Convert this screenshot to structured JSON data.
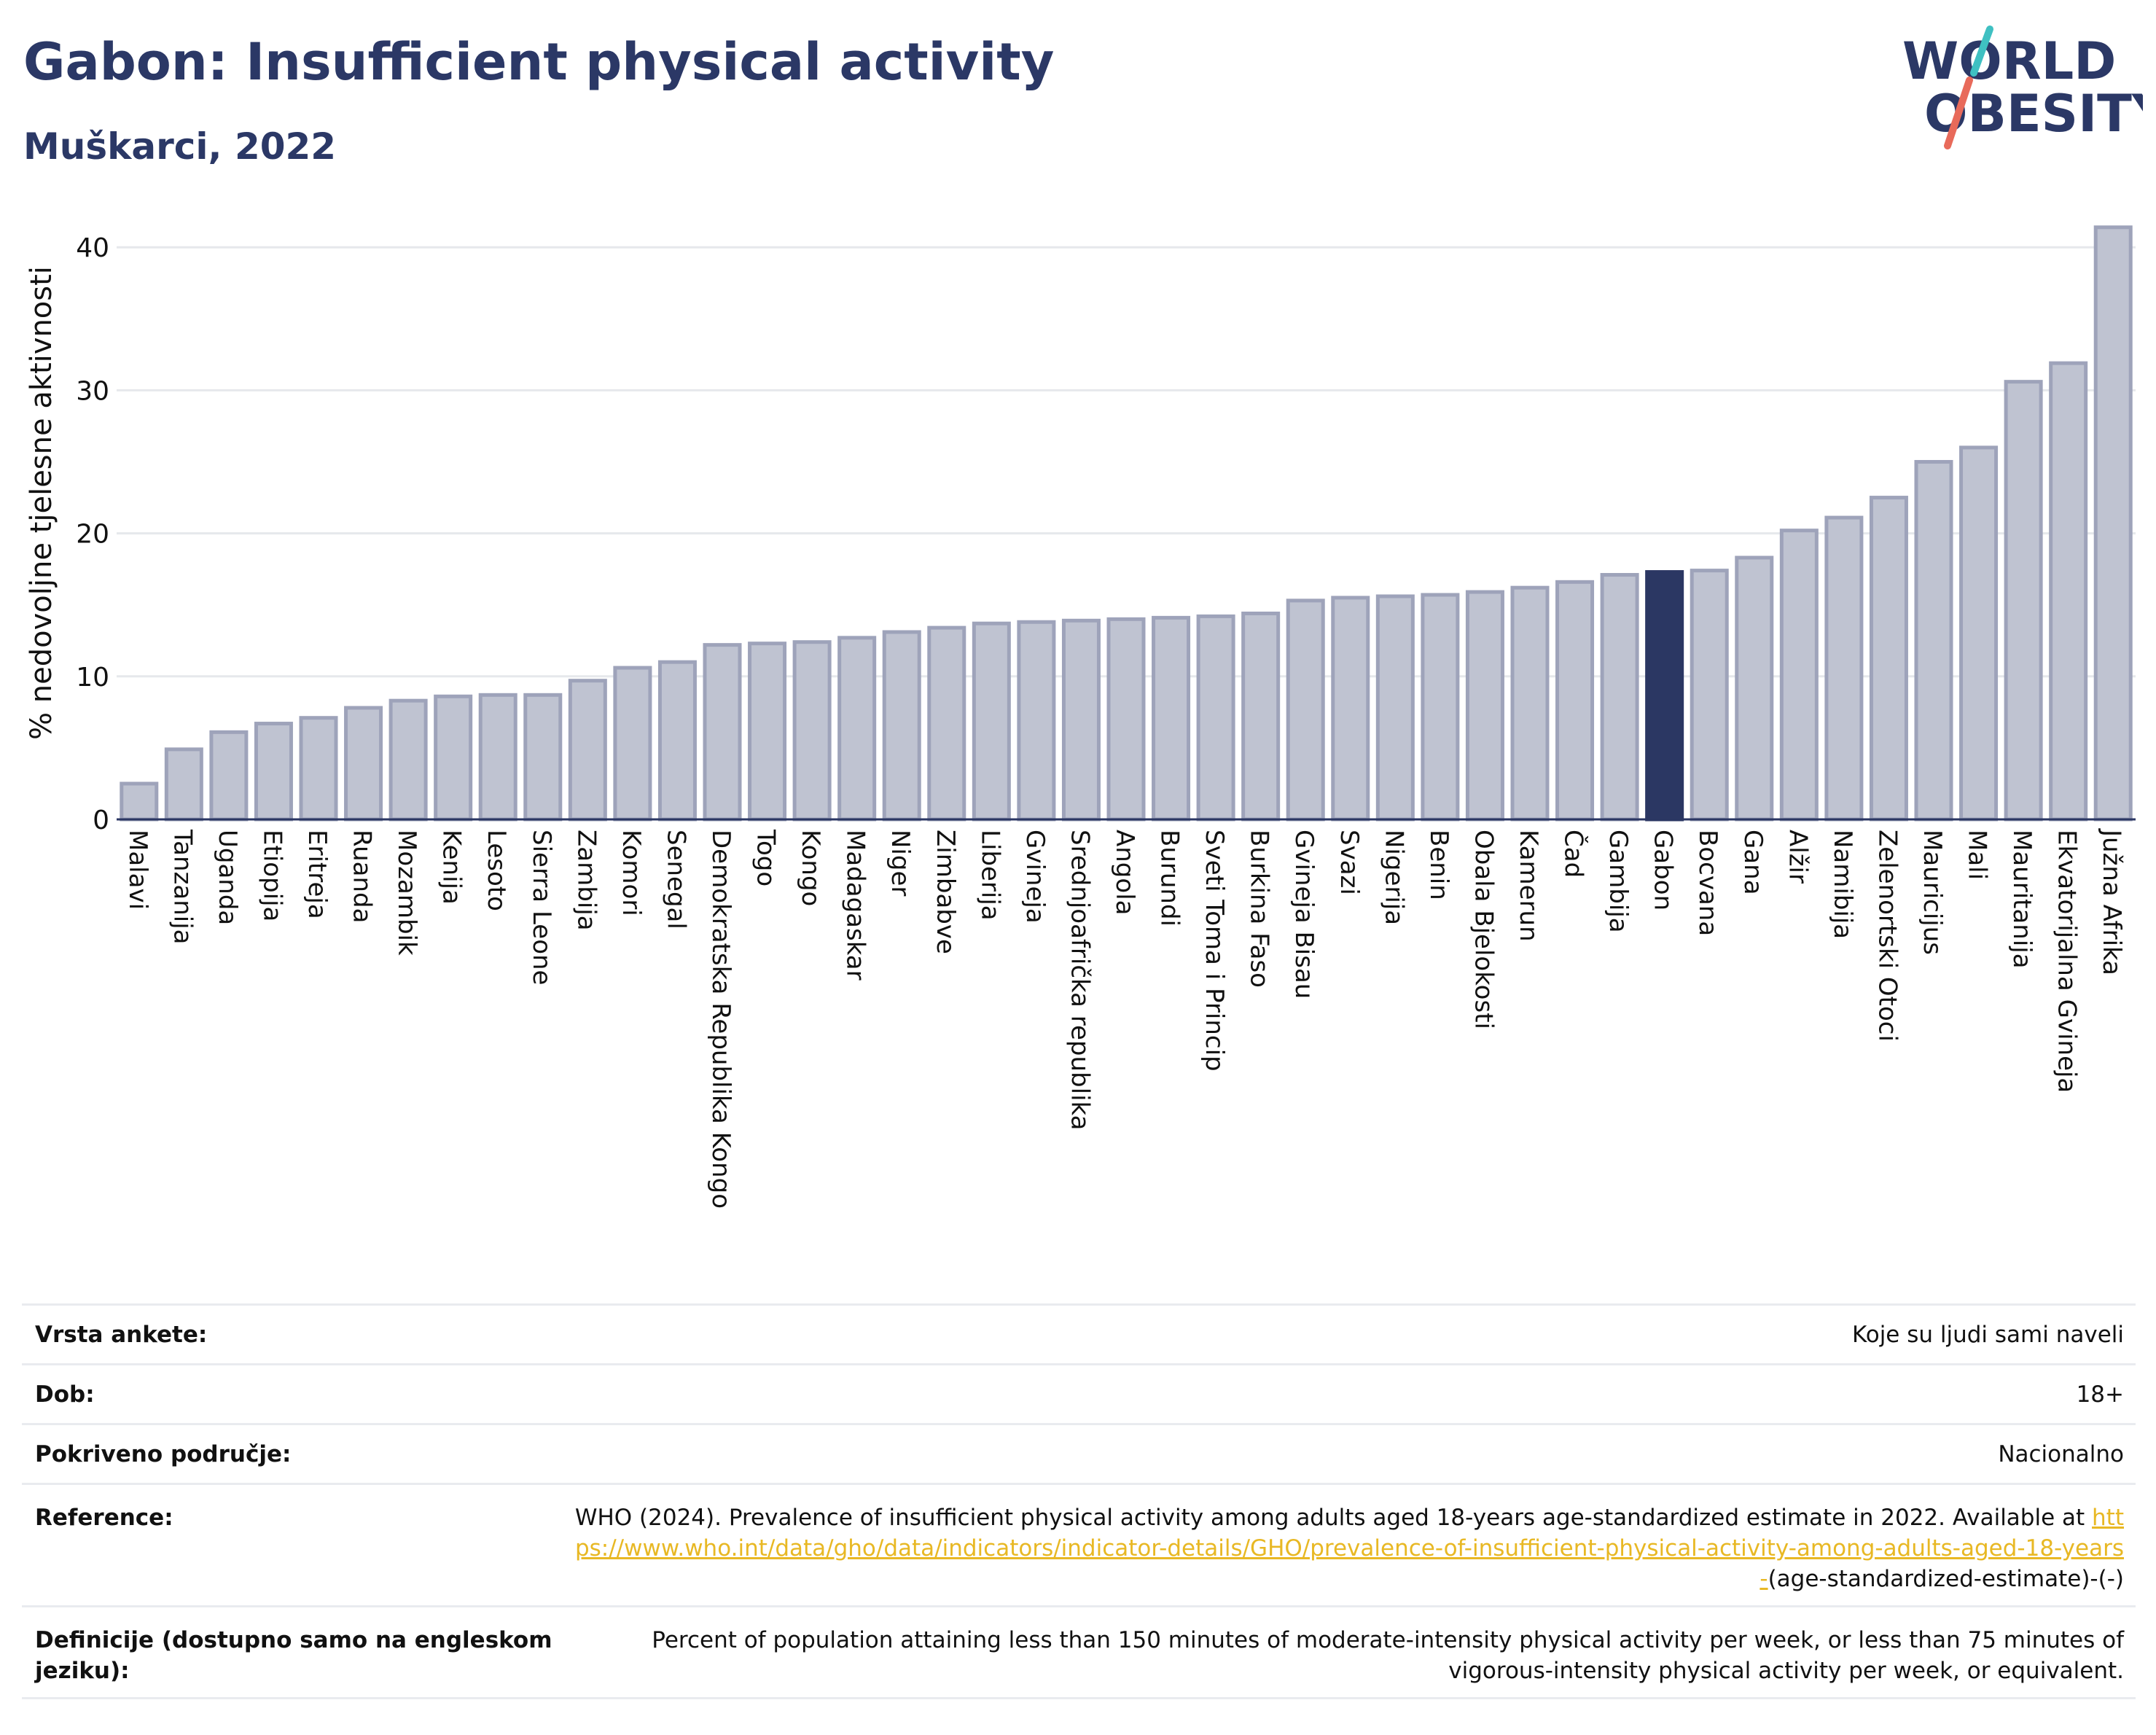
{
  "header": {
    "title": "Gabon: Insufficient physical activity",
    "subtitle": "Muškarci, 2022",
    "logo_line1": "WORLD",
    "logo_line2": "OBESITY"
  },
  "chart_data": {
    "type": "bar",
    "ylabel": "% nedovoljne tjelesne aktivnosti",
    "ylim": [
      0,
      42
    ],
    "yticks": [
      0,
      10,
      20,
      30,
      40
    ],
    "grid": true,
    "highlight": "Gabon",
    "colors": {
      "bar": "#bfc3d1",
      "bar_edge": "#9ea3ba",
      "highlight": "#2b3763",
      "grid": "#e6e8ec",
      "axis": "#2b3763"
    },
    "categories": [
      "Malavi",
      "Tanzanija",
      "Uganda",
      "Etiopija",
      "Eritreja",
      "Ruanda",
      "Mozambik",
      "Kenija",
      "Lesoto",
      "Sierra Leone",
      "Zambija",
      "Komori",
      "Senegal",
      "Demokratska Republika Kongo",
      "Togo",
      "Kongo",
      "Madagaskar",
      "Niger",
      "Zimbabve",
      "Liberija",
      "Gvineja",
      "Srednjoafrička republika",
      "Angola",
      "Burundi",
      "Sveti Toma i Princip",
      "Burkina Faso",
      "Gvineja Bisau",
      "Svazi",
      "Nigerija",
      "Benin",
      "Obala Bjelokosti",
      "Kamerun",
      "Čad",
      "Gambija",
      "Gabon",
      "Bocvana",
      "Gana",
      "Alžir",
      "Namibija",
      "Zelenortski Otoci",
      "Mauricijus",
      "Mali",
      "Mauritanija",
      "Ekvatorijalna Gvineja",
      "Južna Afrika"
    ],
    "values": [
      2.5,
      4.9,
      6.1,
      6.7,
      7.1,
      7.8,
      8.3,
      8.6,
      8.7,
      8.7,
      9.7,
      10.6,
      11.0,
      12.2,
      12.3,
      12.4,
      12.7,
      13.1,
      13.4,
      13.7,
      13.8,
      13.9,
      14.0,
      14.1,
      14.2,
      14.4,
      15.3,
      15.5,
      15.6,
      15.7,
      15.9,
      16.2,
      16.6,
      17.1,
      17.3,
      17.4,
      18.3,
      20.2,
      21.1,
      22.5,
      25.0,
      26.0,
      30.6,
      31.9,
      41.4
    ]
  },
  "info": {
    "rows": [
      {
        "label": "Vrsta ankete:",
        "value": "Koje su ljudi sami naveli"
      },
      {
        "label": "Dob:",
        "value": "18+"
      },
      {
        "label": "Pokriveno područje:",
        "value": "Nacionalno"
      }
    ],
    "reference": {
      "label": "Reference:",
      "text": "WHO (2024). Prevalence of insufficient physical activity among adults aged 18-years age-standardized estimate in 2022. Available at",
      "link": "https://www.who.int/data/gho/data/indicators/indicator-details/GHO/prevalence-of-insufficient-physical-activity-among-adults-aged-18-years-",
      "suffix": "(age-standardized-estimate)-(-)"
    },
    "definition": {
      "label": "Definicije (dostupno samo na engleskom jeziku):",
      "value": "Percent of population attaining less than 150 minutes of moderate-intensity physical activity per week, or less than 75 minutes of vigorous-intensity physical activity per week, or equivalent."
    }
  }
}
